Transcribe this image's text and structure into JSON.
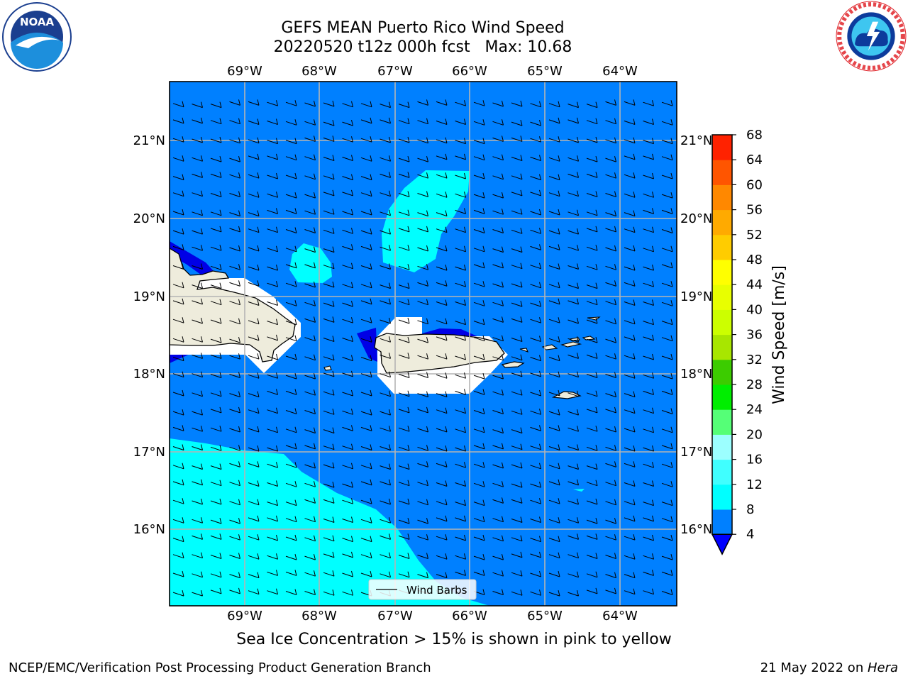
{
  "header": {
    "title_line1": "GEFS MEAN Puerto Rico Wind Speed",
    "title_line2": "20220520 t12z 000h fcst   Max: 10.68"
  },
  "subtitle": "Sea Ice Concentration > 15% is shown in pink to yellow",
  "footer": {
    "left": "NCEP/EMC/Verification Post Processing Product Generation Branch",
    "right_date": "21 May 2022 on ",
    "right_host": "Hera"
  },
  "logos": {
    "left": {
      "name": "NOAA",
      "ring_text": "NATIONAL OCEANIC AND ATMOSPHERIC ADMINISTRATION • U.S. DEPARTMENT OF COMMERCE"
    },
    "right": {
      "name": "NATIONAL WEATHER SERVICE",
      "ring_text": "NATIONAL WEATHER SERVICE"
    }
  },
  "map": {
    "longitude_labels": [
      "69°W",
      "68°W",
      "67°W",
      "66°W",
      "65°W",
      "64°W"
    ],
    "latitude_labels": [
      "21°N",
      "20°N",
      "19°N",
      "18°N",
      "17°N",
      "16°N"
    ],
    "legend_label": "Wind Barbs",
    "colors": {
      "ocean_low": "#0080ff",
      "ocean_mid": "#00ffff",
      "ocean_min": "#0000e6",
      "land": "#eeecdc",
      "grid": "#b4b4b4"
    }
  },
  "colorbar": {
    "label": "Wind Speed [m/s]",
    "ticks": [
      "4",
      "8",
      "12",
      "16",
      "20",
      "24",
      "28",
      "32",
      "36",
      "40",
      "44",
      "48",
      "52",
      "56",
      "60",
      "64",
      "68"
    ],
    "colors": [
      "#0080ff",
      "#00ffff",
      "#40ffff",
      "#9cffff",
      "#55ff77",
      "#00ee00",
      "#3ccc00",
      "#a8e600",
      "#ccff00",
      "#e8ff00",
      "#ffff00",
      "#ffcc00",
      "#ffaa00",
      "#ff8800",
      "#ff5500",
      "#ff2200"
    ],
    "under_color": "#0000ff"
  }
}
